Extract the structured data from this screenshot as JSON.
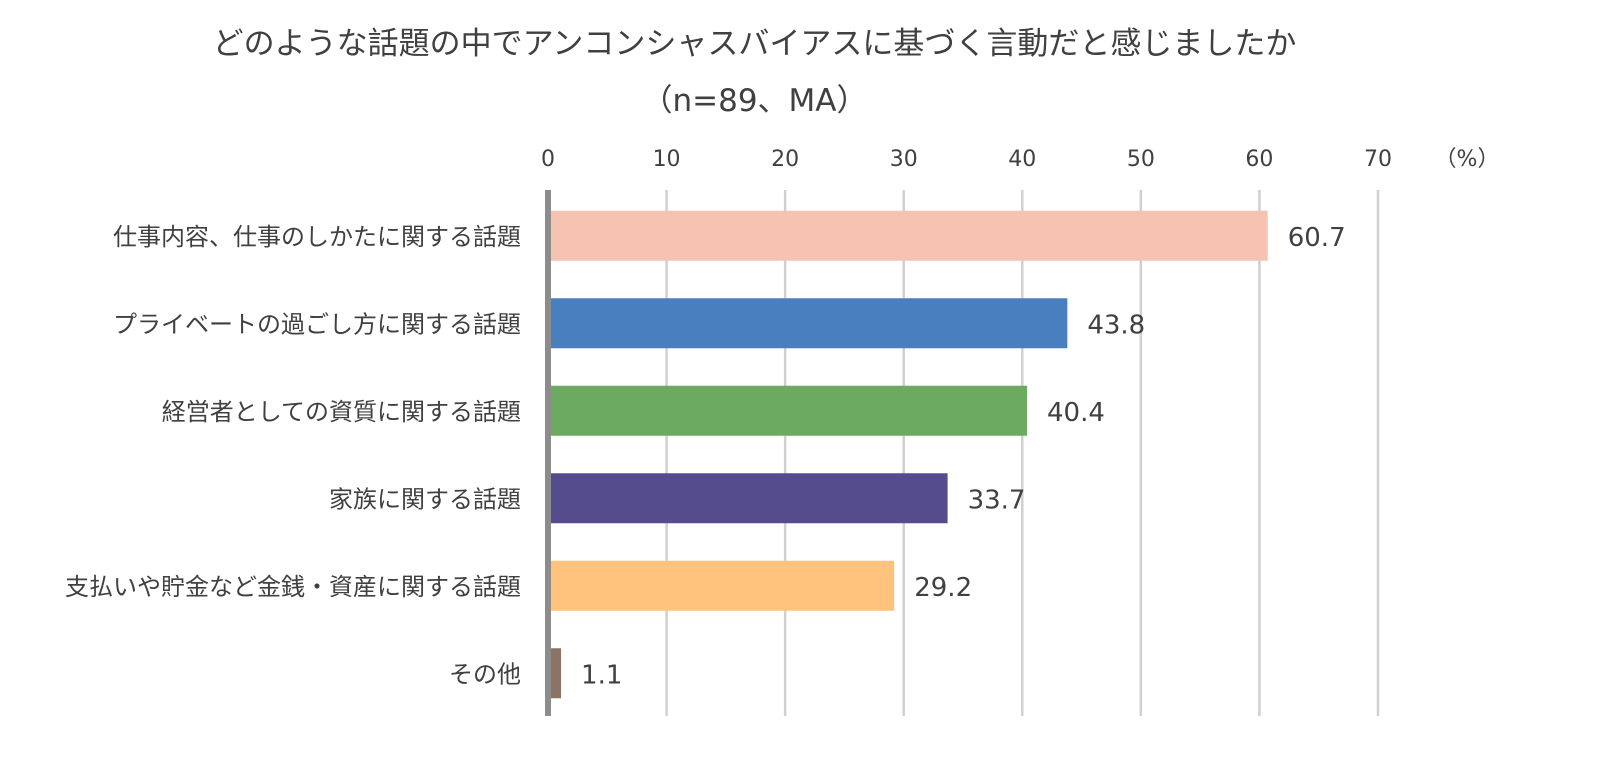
{
  "chart_data": {
    "type": "bar",
    "orientation": "horizontal",
    "title": "どのような話題の中でアンコンシャスバイアスに基づく言動だと感じましたか",
    "subtitle": "（n=89、MA）",
    "unit_label": "（%）",
    "xlim": [
      0,
      70
    ],
    "ticks": [
      0,
      10,
      20,
      30,
      40,
      50,
      60,
      70
    ],
    "grid": true,
    "categories": [
      "仕事内容、仕事のしかたに関する話題",
      "プライベートの過ごし方に関する話題",
      "経営者としての資質に関する話題",
      "家族に関する話題",
      "支払いや貯金など金銭・資産に関する話題",
      "その他"
    ],
    "values": [
      60.7,
      43.8,
      40.4,
      33.7,
      29.2,
      1.1
    ],
    "value_labels": [
      "60.7",
      "43.8",
      "40.4",
      "33.7",
      "29.2",
      "1.1"
    ],
    "colors": [
      "#F6C3B3",
      "#4A7FBF",
      "#6CAA62",
      "#554C8E",
      "#FFC37D",
      "#8B7466"
    ]
  }
}
